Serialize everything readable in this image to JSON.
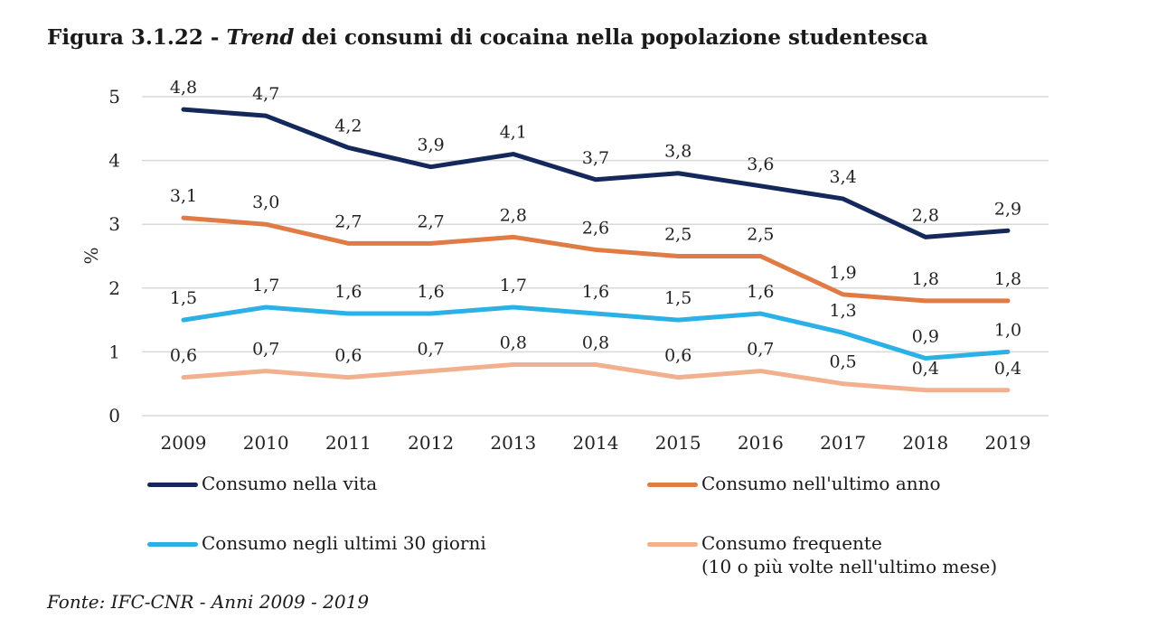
{
  "header": {
    "title_prefix": "Figura 3.1.22 - ",
    "title_emph": "Trend",
    "title_suffix": " dei consumi di cocaina nella popolazione studentesca"
  },
  "source": "Fonte: IFC-CNR - Anni 2009 - 2019",
  "chart_data": {
    "type": "line",
    "title": "Figura 3.1.22 - Trend dei consumi di cocaina nella popolazione studentesca",
    "ylabel": "%",
    "xlabel": "",
    "ylim": [
      0,
      5
    ],
    "yticks": [
      "0",
      "1",
      "2",
      "3",
      "4",
      "5"
    ],
    "grid": true,
    "legend_position": "bottom",
    "categories": [
      "2009",
      "2010",
      "2011",
      "2012",
      "2013",
      "2014",
      "2015",
      "2016",
      "2017",
      "2018",
      "2019"
    ],
    "series": [
      {
        "name": "Consumo nella vita",
        "color": "#14285c",
        "values": [
          4.8,
          4.7,
          4.2,
          3.9,
          4.1,
          3.7,
          3.8,
          3.6,
          3.4,
          2.8,
          2.9
        ],
        "labels": [
          "4,8",
          "4,7",
          "4,2",
          "3,9",
          "4,1",
          "3,7",
          "3,8",
          "3,6",
          "3,4",
          "2,8",
          "2,9"
        ]
      },
      {
        "name": "Consumo nell'ultimo anno",
        "color": "#e07b45",
        "values": [
          3.1,
          3.0,
          2.7,
          2.7,
          2.8,
          2.6,
          2.5,
          2.5,
          1.9,
          1.8,
          1.8
        ],
        "labels": [
          "3,1",
          "3,0",
          "2,7",
          "2,7",
          "2,8",
          "2,6",
          "2,5",
          "2,5",
          "1,9",
          "1,8",
          "1,8"
        ]
      },
      {
        "name": "Consumo negli ultimi 30 giorni",
        "color": "#2cb1e6",
        "values": [
          1.5,
          1.7,
          1.6,
          1.6,
          1.7,
          1.6,
          1.5,
          1.6,
          1.3,
          0.9,
          1.0
        ],
        "labels": [
          "1,5",
          "1,7",
          "1,6",
          "1,6",
          "1,7",
          "1,6",
          "1,5",
          "1,6",
          "1,3",
          "0,9",
          "1,0"
        ]
      },
      {
        "name": "Consumo frequente\n(10 o più volte nell'ultimo mese)",
        "color": "#f2b08e",
        "values": [
          0.6,
          0.7,
          0.6,
          0.7,
          0.8,
          0.8,
          0.6,
          0.7,
          0.5,
          0.4,
          0.4
        ],
        "labels": [
          "0,6",
          "0,7",
          "0,6",
          "0,7",
          "0,8",
          "0,8",
          "0,6",
          "0,7",
          "0,5",
          "0,4",
          "0,4"
        ]
      }
    ]
  }
}
